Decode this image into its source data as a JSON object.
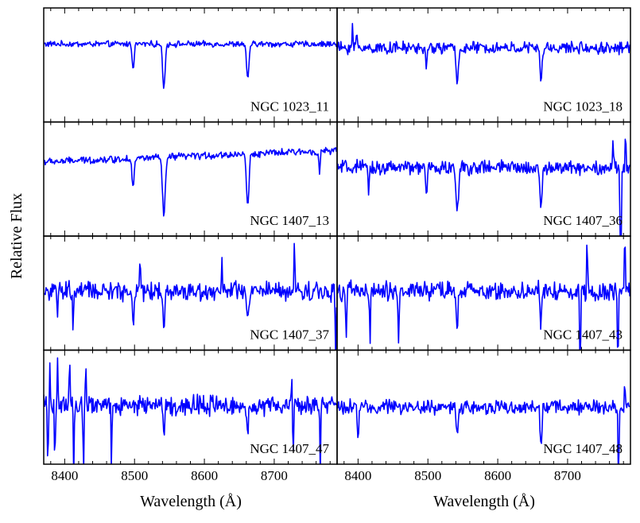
{
  "chart_data": {
    "type": "line",
    "ylabel": "Relative Flux",
    "xlabel": "Wavelength (Å)",
    "xlim": [
      8370,
      8790
    ],
    "x_ticks": [
      8400,
      8500,
      8600,
      8700
    ],
    "x_tick_labels": [
      "8400",
      "8500",
      "8600",
      "8700"
    ],
    "grid": false,
    "line_color": "#0000ff",
    "columns": 2,
    "rows": 4,
    "panels": [
      {
        "label": "NGC 1023_11",
        "ylim": [
          0,
          1.2
        ],
        "continuum": 0.82,
        "noise": 0.025,
        "absorption": [
          {
            "x": 8498,
            "depth": 0.25,
            "sigma": 1.4
          },
          {
            "x": 8542,
            "depth": 0.45,
            "sigma": 1.8
          },
          {
            "x": 8662,
            "depth": 0.38,
            "sigma": 1.7
          }
        ],
        "spikes": []
      },
      {
        "label": "NGC 1023_18",
        "ylim": [
          0,
          1.2
        ],
        "continuum": 0.78,
        "noise": 0.05,
        "absorption": [
          {
            "x": 8498,
            "depth": 0.2,
            "sigma": 1.3
          },
          {
            "x": 8542,
            "depth": 0.38,
            "sigma": 1.6
          },
          {
            "x": 8662,
            "depth": 0.33,
            "sigma": 1.6
          }
        ],
        "spikes": [
          {
            "x": 8392,
            "height": 0.25
          },
          {
            "x": 8398,
            "height": 0.22
          }
        ]
      },
      {
        "label": "NGC 1407_13",
        "ylim": [
          0,
          1.2
        ],
        "continuum": 0.78,
        "noise": 0.03,
        "slope": 0.12,
        "absorption": [
          {
            "x": 8498,
            "depth": 0.3,
            "sigma": 1.5
          },
          {
            "x": 8542,
            "depth": 0.62,
            "sigma": 2.0
          },
          {
            "x": 8662,
            "depth": 0.55,
            "sigma": 1.8
          },
          {
            "x": 8765,
            "depth": 0.22,
            "sigma": 1.0
          }
        ],
        "spikes": []
      },
      {
        "label": "NGC 1407_36",
        "ylim": [
          0,
          1.2
        ],
        "continuum": 0.72,
        "noise": 0.06,
        "absorption": [
          {
            "x": 8415,
            "depth": 0.25,
            "sigma": 1.0
          },
          {
            "x": 8498,
            "depth": 0.28,
            "sigma": 1.3
          },
          {
            "x": 8542,
            "depth": 0.5,
            "sigma": 1.7
          },
          {
            "x": 8662,
            "depth": 0.42,
            "sigma": 1.6
          },
          {
            "x": 8776,
            "depth": 1.0,
            "sigma": 1.0
          }
        ],
        "spikes": [
          {
            "x": 8765,
            "height": 0.25
          },
          {
            "x": 8783,
            "height": 0.4
          }
        ]
      },
      {
        "label": "NGC 1407_37",
        "ylim": [
          0,
          1.2
        ],
        "continuum": 0.62,
        "noise": 0.08,
        "absorption": [
          {
            "x": 8390,
            "depth": 0.25,
            "sigma": 0.8
          },
          {
            "x": 8412,
            "depth": 0.4,
            "sigma": 0.8
          },
          {
            "x": 8498,
            "depth": 0.3,
            "sigma": 1.2
          },
          {
            "x": 8542,
            "depth": 0.35,
            "sigma": 1.4
          },
          {
            "x": 8662,
            "depth": 0.35,
            "sigma": 1.4
          },
          {
            "x": 8788,
            "depth": 0.7,
            "sigma": 0.7
          }
        ],
        "spikes": [
          {
            "x": 8508,
            "height": 0.4
          },
          {
            "x": 8625,
            "height": 0.35
          },
          {
            "x": 8729,
            "height": 0.55
          }
        ]
      },
      {
        "label": "NGC 1407_43",
        "ylim": [
          0,
          1.2
        ],
        "continuum": 0.62,
        "noise": 0.08,
        "absorption": [
          {
            "x": 8383,
            "depth": 0.5,
            "sigma": 0.7
          },
          {
            "x": 8417,
            "depth": 0.6,
            "sigma": 0.7
          },
          {
            "x": 8458,
            "depth": 0.55,
            "sigma": 0.7
          },
          {
            "x": 8542,
            "depth": 0.35,
            "sigma": 1.3
          },
          {
            "x": 8662,
            "depth": 0.35,
            "sigma": 1.3
          },
          {
            "x": 8718,
            "depth": 0.8,
            "sigma": 0.7
          },
          {
            "x": 8772,
            "depth": 0.8,
            "sigma": 0.7
          }
        ],
        "spikes": [
          {
            "x": 8728,
            "height": 0.6
          },
          {
            "x": 8782,
            "height": 0.6
          }
        ]
      },
      {
        "label": "NGC 1407_47",
        "ylim": [
          0,
          1.2
        ],
        "continuum": 0.62,
        "noise": 0.08,
        "absorption": [
          {
            "x": 8376,
            "depth": 0.7,
            "sigma": 0.6
          },
          {
            "x": 8386,
            "depth": 0.7,
            "sigma": 0.6
          },
          {
            "x": 8413,
            "depth": 0.7,
            "sigma": 0.6
          },
          {
            "x": 8427,
            "depth": 0.7,
            "sigma": 0.6
          },
          {
            "x": 8467,
            "depth": 0.7,
            "sigma": 0.6
          },
          {
            "x": 8542,
            "depth": 0.3,
            "sigma": 1.2
          },
          {
            "x": 8662,
            "depth": 0.3,
            "sigma": 1.2
          },
          {
            "x": 8727,
            "depth": 0.6,
            "sigma": 0.6
          },
          {
            "x": 8766,
            "depth": 0.7,
            "sigma": 0.6
          }
        ],
        "spikes": [
          {
            "x": 8379,
            "height": 0.5
          },
          {
            "x": 8390,
            "height": 0.5
          },
          {
            "x": 8407,
            "height": 0.5
          },
          {
            "x": 8430,
            "height": 0.5
          },
          {
            "x": 8725,
            "height": 0.3
          }
        ]
      },
      {
        "label": "NGC 1407_48",
        "ylim": [
          0,
          1.2
        ],
        "continuum": 0.6,
        "noise": 0.06,
        "absorption": [
          {
            "x": 8400,
            "depth": 0.4,
            "sigma": 0.9
          },
          {
            "x": 8542,
            "depth": 0.33,
            "sigma": 1.3
          },
          {
            "x": 8662,
            "depth": 0.35,
            "sigma": 1.3
          },
          {
            "x": 8773,
            "depth": 0.8,
            "sigma": 0.6
          }
        ],
        "spikes": [
          {
            "x": 8782,
            "height": 0.35
          }
        ]
      }
    ]
  }
}
